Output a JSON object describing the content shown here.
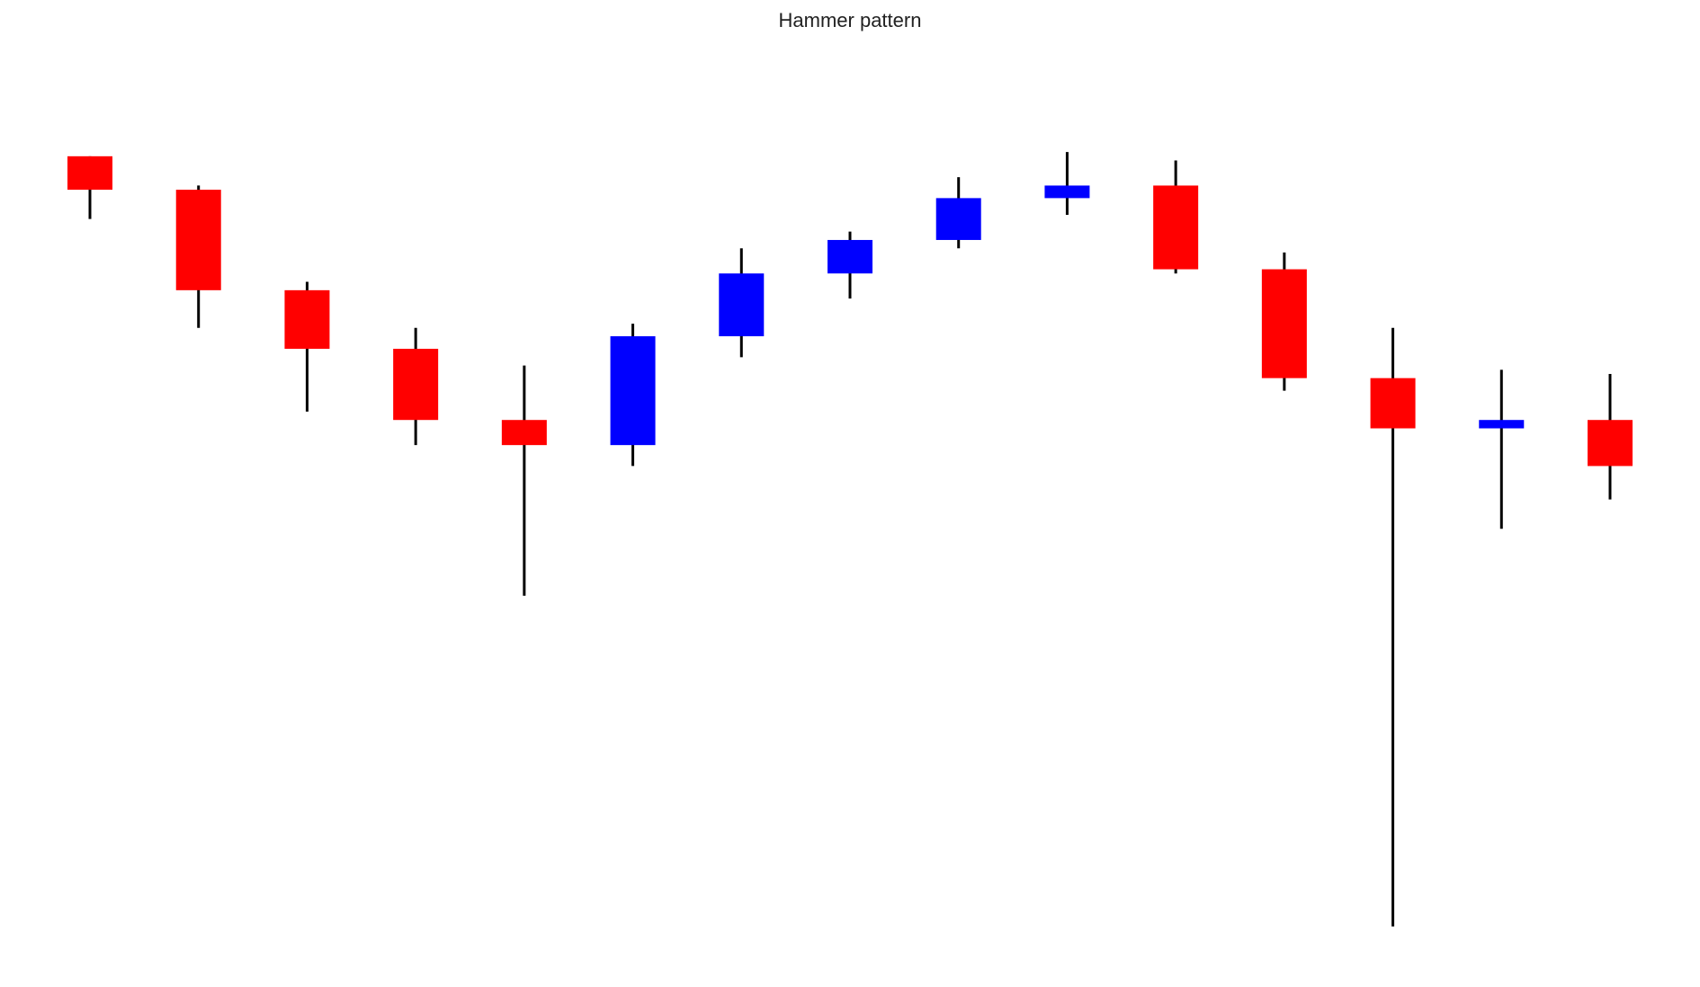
{
  "chart_data": {
    "type": "candlestick",
    "title": "Hammer pattern",
    "xlabel": "",
    "ylabel": "",
    "axes_visible": false,
    "grid": false,
    "legend": "none",
    "up_color": "#0000ff",
    "down_color": "#ff0000",
    "wick_color": "#000000",
    "ylim": [
      0,
      102
    ],
    "candles": [
      {
        "open": 93.0,
        "close": 89.0,
        "high": 93.0,
        "low": 85.5
      },
      {
        "open": 89.0,
        "close": 77.0,
        "high": 89.5,
        "low": 72.5
      },
      {
        "open": 77.0,
        "close": 70.0,
        "high": 78.0,
        "low": 62.5
      },
      {
        "open": 70.0,
        "close": 61.5,
        "high": 72.5,
        "low": 58.5
      },
      {
        "open": 61.5,
        "close": 58.5,
        "high": 68.0,
        "low": 40.5
      },
      {
        "open": 58.5,
        "close": 71.5,
        "high": 73.0,
        "low": 56.0
      },
      {
        "open": 71.5,
        "close": 79.0,
        "high": 82.0,
        "low": 69.0
      },
      {
        "open": 79.0,
        "close": 83.0,
        "high": 84.0,
        "low": 76.0
      },
      {
        "open": 83.0,
        "close": 88.0,
        "high": 90.5,
        "low": 82.0
      },
      {
        "open": 88.0,
        "close": 89.5,
        "high": 93.5,
        "low": 86.0
      },
      {
        "open": 89.5,
        "close": 79.5,
        "high": 92.5,
        "low": 79.0
      },
      {
        "open": 79.5,
        "close": 66.5,
        "high": 81.5,
        "low": 65.0
      },
      {
        "open": 66.5,
        "close": 60.5,
        "high": 72.5,
        "low": 1.0
      },
      {
        "open": 60.5,
        "close": 61.5,
        "high": 67.5,
        "low": 48.5
      },
      {
        "open": 61.5,
        "close": 56.0,
        "high": 67.0,
        "low": 52.0
      }
    ]
  }
}
